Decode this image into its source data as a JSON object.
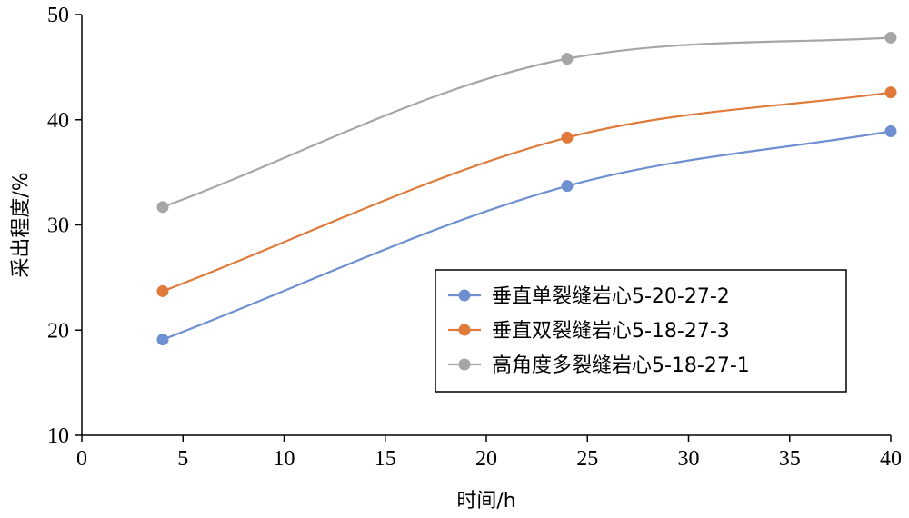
{
  "chart_data": {
    "type": "line",
    "title": "",
    "xlabel": "时间/h",
    "ylabel": "采出程度/%",
    "xlim": [
      0,
      40
    ],
    "ylim": [
      10,
      50
    ],
    "xticks": [
      0,
      5,
      10,
      15,
      20,
      25,
      30,
      35,
      40
    ],
    "yticks": [
      10,
      20,
      30,
      40,
      50
    ],
    "x": [
      4,
      24,
      40
    ],
    "grid": false,
    "legend_position": "bottom-right",
    "smooth": true,
    "series": [
      {
        "name": "垂直单裂缝岩心5-20-27-2",
        "values": [
          19.1,
          33.7,
          38.9
        ],
        "color": "#6e8fd0"
      },
      {
        "name": "垂直双裂缝岩心5-18-27-3",
        "values": [
          23.7,
          38.3,
          42.6
        ],
        "color": "#e07a3a"
      },
      {
        "name": "高角度多裂缝岩心5-18-27-1",
        "values": [
          31.7,
          45.8,
          47.8
        ],
        "color": "#a6a6a6"
      }
    ]
  }
}
